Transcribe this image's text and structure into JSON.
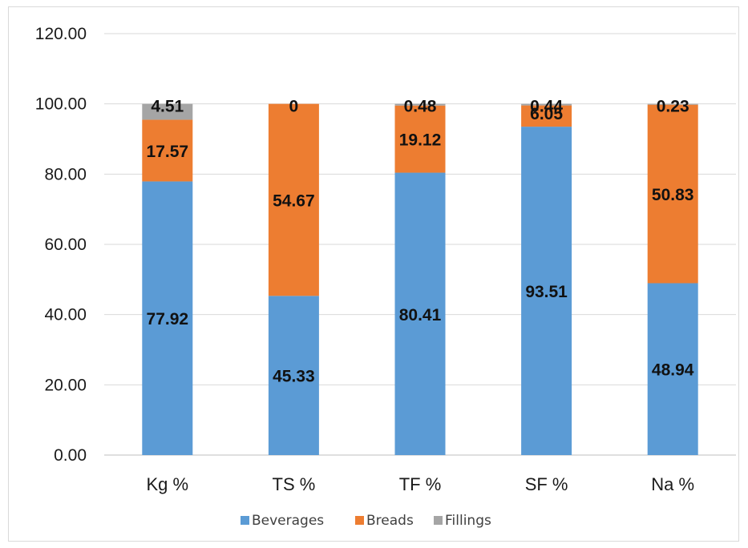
{
  "chart_data": {
    "type": "bar",
    "stacked": true,
    "title": "",
    "xlabel": "",
    "ylabel": "",
    "ylim": [
      0,
      120
    ],
    "yticks": [
      "0.00",
      "20.00",
      "40.00",
      "60.00",
      "80.00",
      "100.00",
      "120.00"
    ],
    "ytick_values": [
      0,
      20,
      40,
      60,
      80,
      100,
      120
    ],
    "categories": [
      "Kg %",
      "TS %",
      "TF  %",
      "SF %",
      "Na %"
    ],
    "series": [
      {
        "name": "Beverages",
        "color": "#5b9bd5",
        "values": [
          77.92,
          45.33,
          80.41,
          93.51,
          48.94
        ],
        "labels": [
          "77.92",
          "45.33",
          "80.41",
          "93.51",
          "48.94"
        ]
      },
      {
        "name": "Breads",
        "color": "#ed7d31",
        "values": [
          17.57,
          54.67,
          19.12,
          6.05,
          50.83
        ],
        "labels": [
          "17.57",
          "54.67",
          "19.12",
          "6.05",
          "50.83"
        ]
      },
      {
        "name": "Fillings",
        "color": "#a5a5a5",
        "values": [
          4.51,
          0,
          0.48,
          0.44,
          0.23
        ],
        "labels": [
          "4.51",
          "0",
          "0.48",
          "0.44",
          "0.23"
        ]
      }
    ],
    "grid": true,
    "legend_position": "bottom"
  }
}
